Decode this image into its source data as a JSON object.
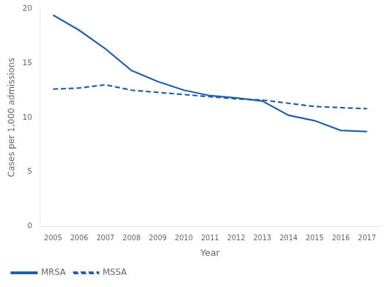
{
  "chart_data": {
    "type": "line",
    "x": [
      2005,
      2006,
      2007,
      2008,
      2009,
      2010,
      2011,
      2012,
      2013,
      2014,
      2015,
      2016,
      2017
    ],
    "series": [
      {
        "name": "MRSA",
        "color": "#1f5fa6",
        "line_style": "solid",
        "values": [
          19.4,
          18.0,
          16.3,
          14.3,
          13.3,
          12.5,
          12.0,
          11.8,
          11.5,
          10.2,
          9.7,
          8.8,
          8.7
        ]
      },
      {
        "name": "MSSA",
        "color": "#1f5fa6",
        "line_style": "dashed",
        "values": [
          12.6,
          12.7,
          13.0,
          12.5,
          12.3,
          12.1,
          11.9,
          11.7,
          11.6,
          11.3,
          11.0,
          10.9,
          10.8
        ]
      }
    ],
    "xlabel": "Year",
    "ylabel": "Cases per 1,000 admissions",
    "xlim": [
      2004.5,
      2017.5
    ],
    "xticks": [
      2005,
      2006,
      2007,
      2008,
      2009,
      2010,
      2011,
      2012,
      2013,
      2014,
      2015,
      2016,
      2017
    ],
    "ylim": [
      0,
      20
    ],
    "yticks": [
      0,
      5,
      10,
      15,
      20
    ],
    "grid": false,
    "legend": "lower left"
  }
}
